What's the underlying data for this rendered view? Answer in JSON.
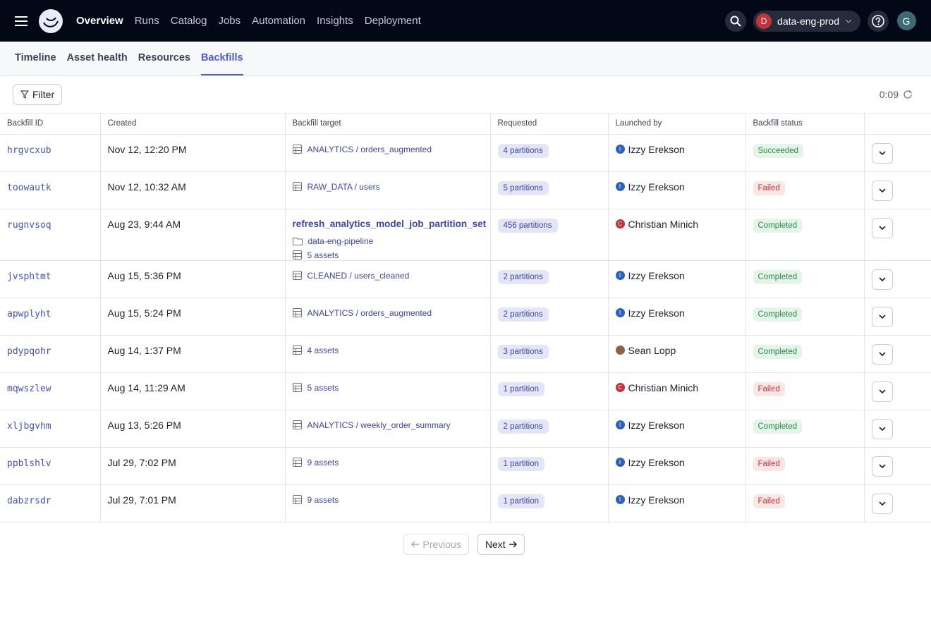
{
  "nav": {
    "items": [
      "Overview",
      "Runs",
      "Catalog",
      "Jobs",
      "Automation",
      "Insights",
      "Deployment"
    ],
    "active": 0,
    "deployment": {
      "initial": "D",
      "name": "data-eng-prod"
    },
    "user_initial": "G"
  },
  "tabs": {
    "items": [
      "Timeline",
      "Asset health",
      "Resources",
      "Backfills"
    ],
    "active": 3
  },
  "toolbar": {
    "filter": "Filter",
    "refresh": "0:09"
  },
  "table": {
    "columns": [
      "Backfill ID",
      "Created",
      "Backfill target",
      "Requested",
      "Launched by",
      "Backfill status"
    ],
    "rows": [
      {
        "id": "hrgvcxub",
        "created": "Nov 12, 12:20 PM",
        "target": {
          "asset": "ANALYTICS / orders_augmented"
        },
        "requested": "4 partitions",
        "launched_by": {
          "initial": "I",
          "name": "Izzy Erekson",
          "avatar_color": "#2a64b8"
        },
        "status": "Succeeded",
        "status_tone": "success"
      },
      {
        "id": "toowautk",
        "created": "Nov 12, 10:32 AM",
        "target": {
          "asset": "RAW_DATA / users"
        },
        "requested": "5 partitions",
        "launched_by": {
          "initial": "I",
          "name": "Izzy Erekson",
          "avatar_color": "#2a64b8"
        },
        "status": "Failed",
        "status_tone": "failure"
      },
      {
        "id": "rugnvsoq",
        "created": "Aug 23, 9:44 AM",
        "target": {
          "job": "refresh_analytics_model_job_partition_set",
          "location": "data-eng-pipeline",
          "assets": "5 assets"
        },
        "requested": "456 partitions",
        "launched_by": {
          "initial": "C",
          "name": "Christian Minich",
          "avatar_color": "#c3313b"
        },
        "status": "Completed",
        "status_tone": "success"
      },
      {
        "id": "jvsphtmt",
        "created": "Aug 15, 5:36 PM",
        "target": {
          "asset": "CLEANED / users_cleaned"
        },
        "requested": "2 partitions",
        "launched_by": {
          "initial": "I",
          "name": "Izzy Erekson",
          "avatar_color": "#2a64b8"
        },
        "status": "Completed",
        "status_tone": "success"
      },
      {
        "id": "apwplyht",
        "created": "Aug 15, 5:24 PM",
        "target": {
          "asset": "ANALYTICS / orders_augmented"
        },
        "requested": "2 partitions",
        "launched_by": {
          "initial": "I",
          "name": "Izzy Erekson",
          "avatar_color": "#2a64b8"
        },
        "status": "Completed",
        "status_tone": "success"
      },
      {
        "id": "pdypqohr",
        "created": "Aug 14, 1:37 PM",
        "target": {
          "asset": "4 assets"
        },
        "requested": "3 partitions",
        "launched_by": {
          "name": "Sean Lopp",
          "avatar_color": "#8a6448"
        },
        "status": "Completed",
        "status_tone": "success"
      },
      {
        "id": "mqwszlew",
        "created": "Aug 14, 11:29 AM",
        "target": {
          "asset": "5 assets"
        },
        "requested": "1 partition",
        "launched_by": {
          "initial": "C",
          "name": "Christian Minich",
          "avatar_color": "#c3313b"
        },
        "status": "Failed",
        "status_tone": "failure"
      },
      {
        "id": "xljbgvhm",
        "created": "Aug 13, 5:26 PM",
        "target": {
          "asset": "ANALYTICS / weekly_order_summary"
        },
        "requested": "2 partitions",
        "launched_by": {
          "initial": "I",
          "name": "Izzy Erekson",
          "avatar_color": "#2a64b8"
        },
        "status": "Completed",
        "status_tone": "success"
      },
      {
        "id": "ppblshlv",
        "created": "Jul 29, 7:02 PM",
        "target": {
          "asset": "9 assets"
        },
        "requested": "1 partition",
        "launched_by": {
          "initial": "I",
          "name": "Izzy Erekson",
          "avatar_color": "#2a64b8"
        },
        "status": "Failed",
        "status_tone": "failure"
      },
      {
        "id": "dabzrsdr",
        "created": "Jul 29, 7:01 PM",
        "target": {
          "asset": "9 assets"
        },
        "requested": "1 partition",
        "launched_by": {
          "initial": "I",
          "name": "Izzy Erekson",
          "avatar_color": "#2a64b8"
        },
        "status": "Failed",
        "status_tone": "failure"
      }
    ]
  },
  "pagination": {
    "previous": "Previous",
    "next": "Next"
  }
}
